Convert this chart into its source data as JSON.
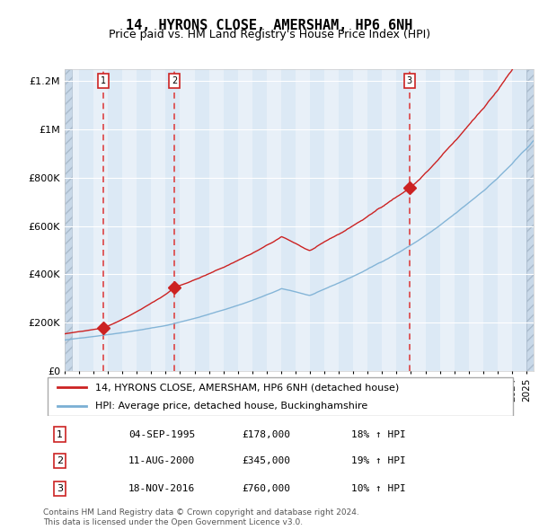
{
  "title": "14, HYRONS CLOSE, AMERSHAM, HP6 6NH",
  "subtitle": "Price paid vs. HM Land Registry's House Price Index (HPI)",
  "hpi_label": "HPI: Average price, detached house, Buckinghamshire",
  "price_label": "14, HYRONS CLOSE, AMERSHAM, HP6 6NH (detached house)",
  "transactions": [
    {
      "num": 1,
      "date_str": "04-SEP-1995",
      "year": 1995.67,
      "price": 178000,
      "pct": "18% ↑ HPI"
    },
    {
      "num": 2,
      "date_str": "11-AUG-2000",
      "year": 2000.62,
      "price": 345000,
      "pct": "19% ↑ HPI"
    },
    {
      "num": 3,
      "date_str": "18-NOV-2016",
      "year": 2016.88,
      "price": 760000,
      "pct": "10% ↑ HPI"
    }
  ],
  "xlim": [
    1993.0,
    2025.5
  ],
  "ylim": [
    0,
    1250000
  ],
  "yticks": [
    0,
    200000,
    400000,
    600000,
    800000,
    1000000,
    1200000
  ],
  "ytick_labels": [
    "£0",
    "£200K",
    "£400K",
    "£600K",
    "£800K",
    "£1M",
    "£1.2M"
  ],
  "background_main": "#dce9f5",
  "background_hatch": "#c8d8e8",
  "background_white_stripe": "#e8f0f8",
  "grid_color": "#ffffff",
  "red_line_color": "#cc2222",
  "blue_line_color": "#7aafd4",
  "dashed_line_color": "#dd4444",
  "marker_color": "#cc2222",
  "footer_text": "Contains HM Land Registry data © Crown copyright and database right 2024.\nThis data is licensed under the Open Government Licence v3.0.",
  "xtick_start": 1993,
  "xtick_end": 2025,
  "figsize": [
    6.0,
    5.9
  ],
  "dpi": 100
}
